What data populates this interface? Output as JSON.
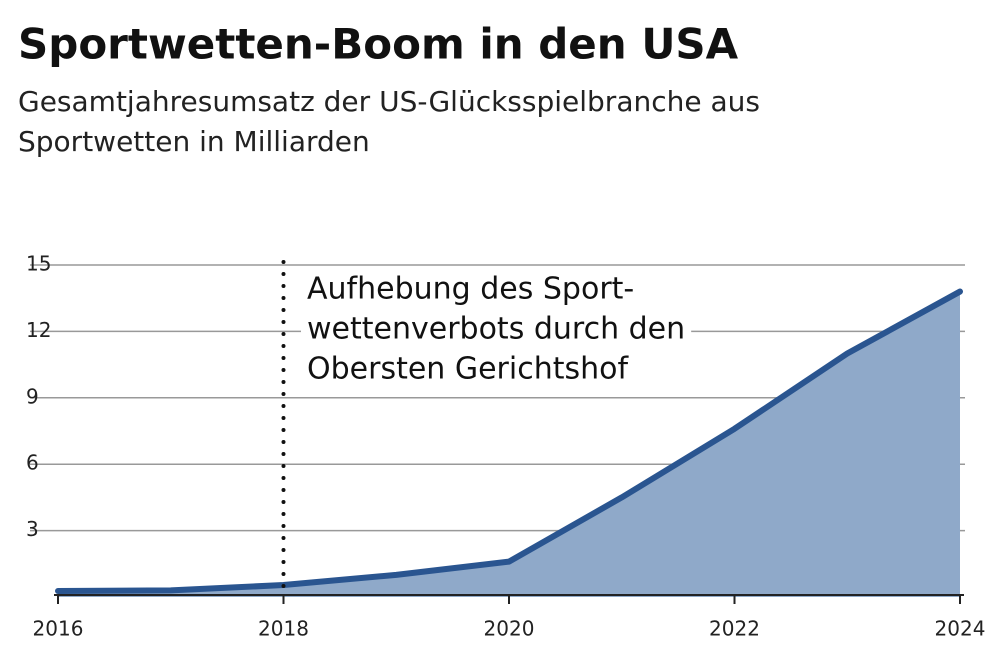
{
  "chart_data": {
    "type": "area",
    "title": "Sportwetten-Boom in den USA",
    "subtitle": [
      "Gesamtjahresumsatz der US-Glücksspielbranche aus",
      "Sportwetten in Milliarden"
    ],
    "x": [
      2016,
      2017,
      2018,
      2019,
      2020,
      2021,
      2022,
      2023,
      2024
    ],
    "values": [
      0.27,
      0.3,
      0.54,
      1.0,
      1.6,
      4.5,
      7.6,
      11.0,
      13.8
    ],
    "line_color": "#2a5590",
    "area_color": "#8fa9c9",
    "xlim": [
      2016,
      2024
    ],
    "xticks": [
      2016,
      2018,
      2020,
      2022,
      2024
    ],
    "ylim": [
      0,
      15
    ],
    "yticks": [
      3,
      6,
      9,
      12,
      15
    ],
    "grid": true,
    "annotation": {
      "x": 2018,
      "lines": [
        "Aufhebung des Sport-",
        "wettenverbots durch den",
        "Obersten Gerichtshof"
      ]
    }
  }
}
